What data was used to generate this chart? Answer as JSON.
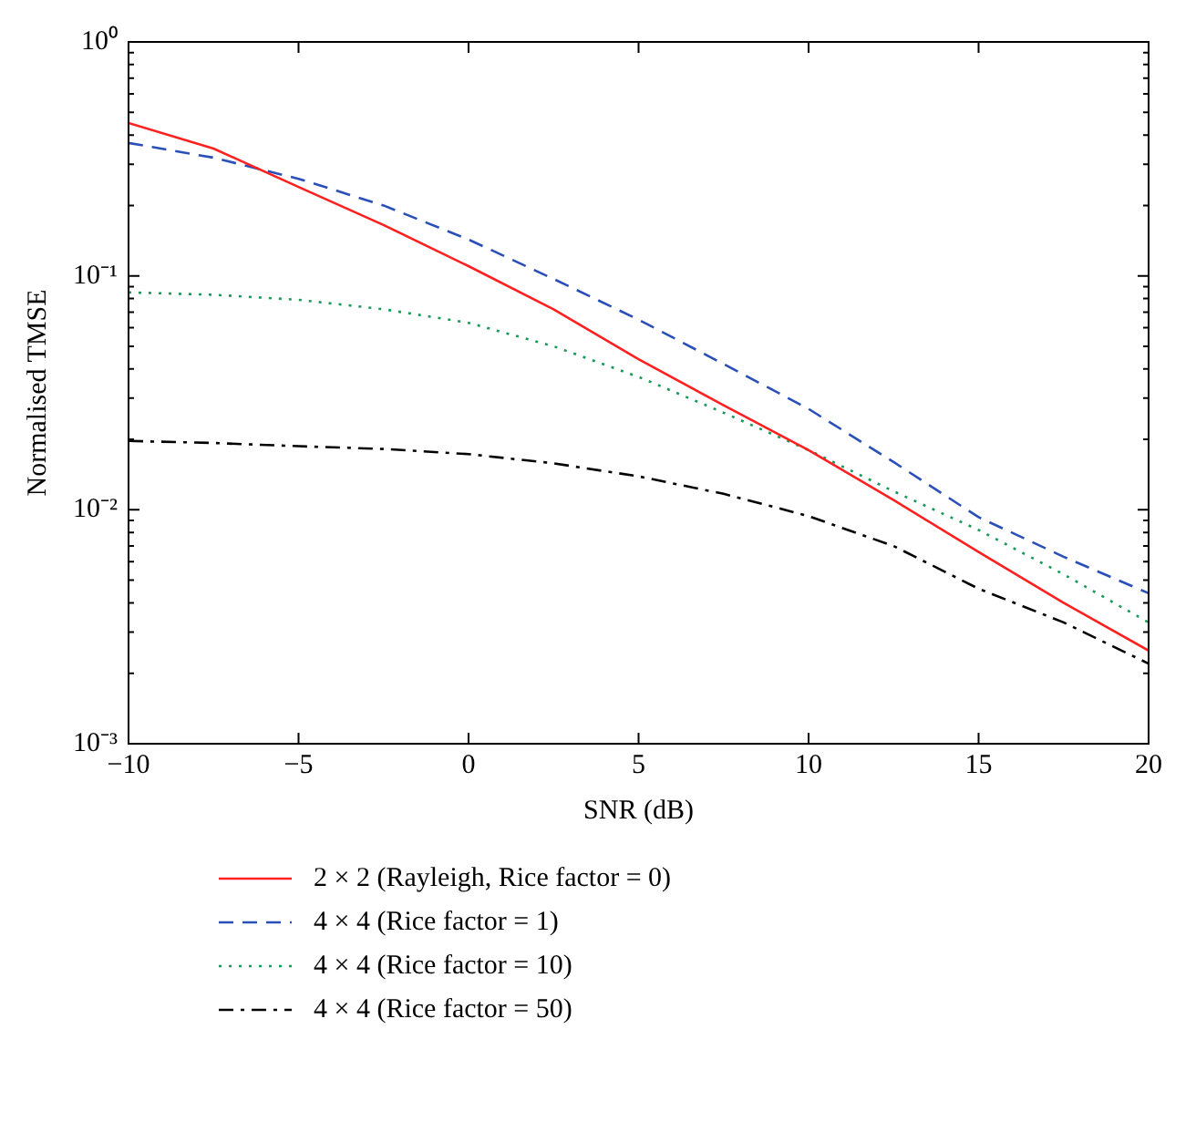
{
  "chart_data": {
    "type": "line",
    "xlabel": "SNR (dB)",
    "ylabel": "Normalised TMSE",
    "x": [
      -10,
      -7.5,
      -5,
      -2.5,
      0,
      2.5,
      5,
      7.5,
      10,
      12.5,
      15,
      17.5,
      20
    ],
    "series": [
      {
        "name": "2 × 2 (Rayleigh, Rice factor = 0)",
        "color": "#ff2020",
        "line_style": "solid",
        "values": [
          0.45,
          0.35,
          0.24,
          0.165,
          0.11,
          0.072,
          0.044,
          0.028,
          0.018,
          0.011,
          0.0066,
          0.004,
          0.0025
        ]
      },
      {
        "name": "4 × 4 (Rice factor = 1)",
        "color": "#2a4fb8",
        "line_style": "dashed",
        "values": [
          0.37,
          0.32,
          0.26,
          0.2,
          0.143,
          0.097,
          0.065,
          0.042,
          0.027,
          0.016,
          0.0093,
          0.0063,
          0.0044
        ]
      },
      {
        "name": "4 × 4 (Rice factor = 10)",
        "color": "#1a9a5a",
        "line_style": "dotted",
        "values": [
          0.085,
          0.083,
          0.079,
          0.072,
          0.063,
          0.05,
          0.037,
          0.026,
          0.018,
          0.012,
          0.0082,
          0.0053,
          0.0033
        ]
      },
      {
        "name": "4 × 4 (Rice factor = 50)",
        "color": "#000000",
        "line_style": "dashdot",
        "values": [
          0.0197,
          0.0193,
          0.0187,
          0.0182,
          0.0173,
          0.0158,
          0.0139,
          0.0117,
          0.0094,
          0.007,
          0.0046,
          0.0033,
          0.0022
        ]
      }
    ],
    "xlim": [
      -10,
      20
    ],
    "xticks": [
      -10,
      -5,
      0,
      5,
      10,
      15,
      20
    ],
    "ylim": [
      0.001,
      1
    ],
    "yticks": [
      {
        "value": 0.001,
        "label": "10⁻³"
      },
      {
        "value": 0.002,
        "label": null
      },
      {
        "value": 0.003,
        "label": null
      },
      {
        "value": 0.004,
        "label": null
      },
      {
        "value": 0.005,
        "label": null
      },
      {
        "value": 0.006,
        "label": null
      },
      {
        "value": 0.007,
        "label": null
      },
      {
        "value": 0.008,
        "label": null
      },
      {
        "value": 0.009,
        "label": null
      },
      {
        "value": 0.01,
        "label": "10⁻²"
      },
      {
        "value": 0.02,
        "label": null
      },
      {
        "value": 0.03,
        "label": null
      },
      {
        "value": 0.04,
        "label": null
      },
      {
        "value": 0.05,
        "label": null
      },
      {
        "value": 0.06,
        "label": null
      },
      {
        "value": 0.07,
        "label": null
      },
      {
        "value": 0.08,
        "label": null
      },
      {
        "value": 0.09,
        "label": null
      },
      {
        "value": 0.1,
        "label": "10⁻¹"
      },
      {
        "value": 0.2,
        "label": null
      },
      {
        "value": 0.3,
        "label": null
      },
      {
        "value": 0.4,
        "label": null
      },
      {
        "value": 0.5,
        "label": null
      },
      {
        "value": 0.6,
        "label": null
      },
      {
        "value": 0.7,
        "label": null
      },
      {
        "value": 0.8,
        "label": null
      },
      {
        "value": 0.9,
        "label": null
      },
      {
        "value": 1,
        "label": "10⁰"
      }
    ],
    "log": "y",
    "grid": false,
    "legend": "bottom",
    "marker": "none"
  }
}
